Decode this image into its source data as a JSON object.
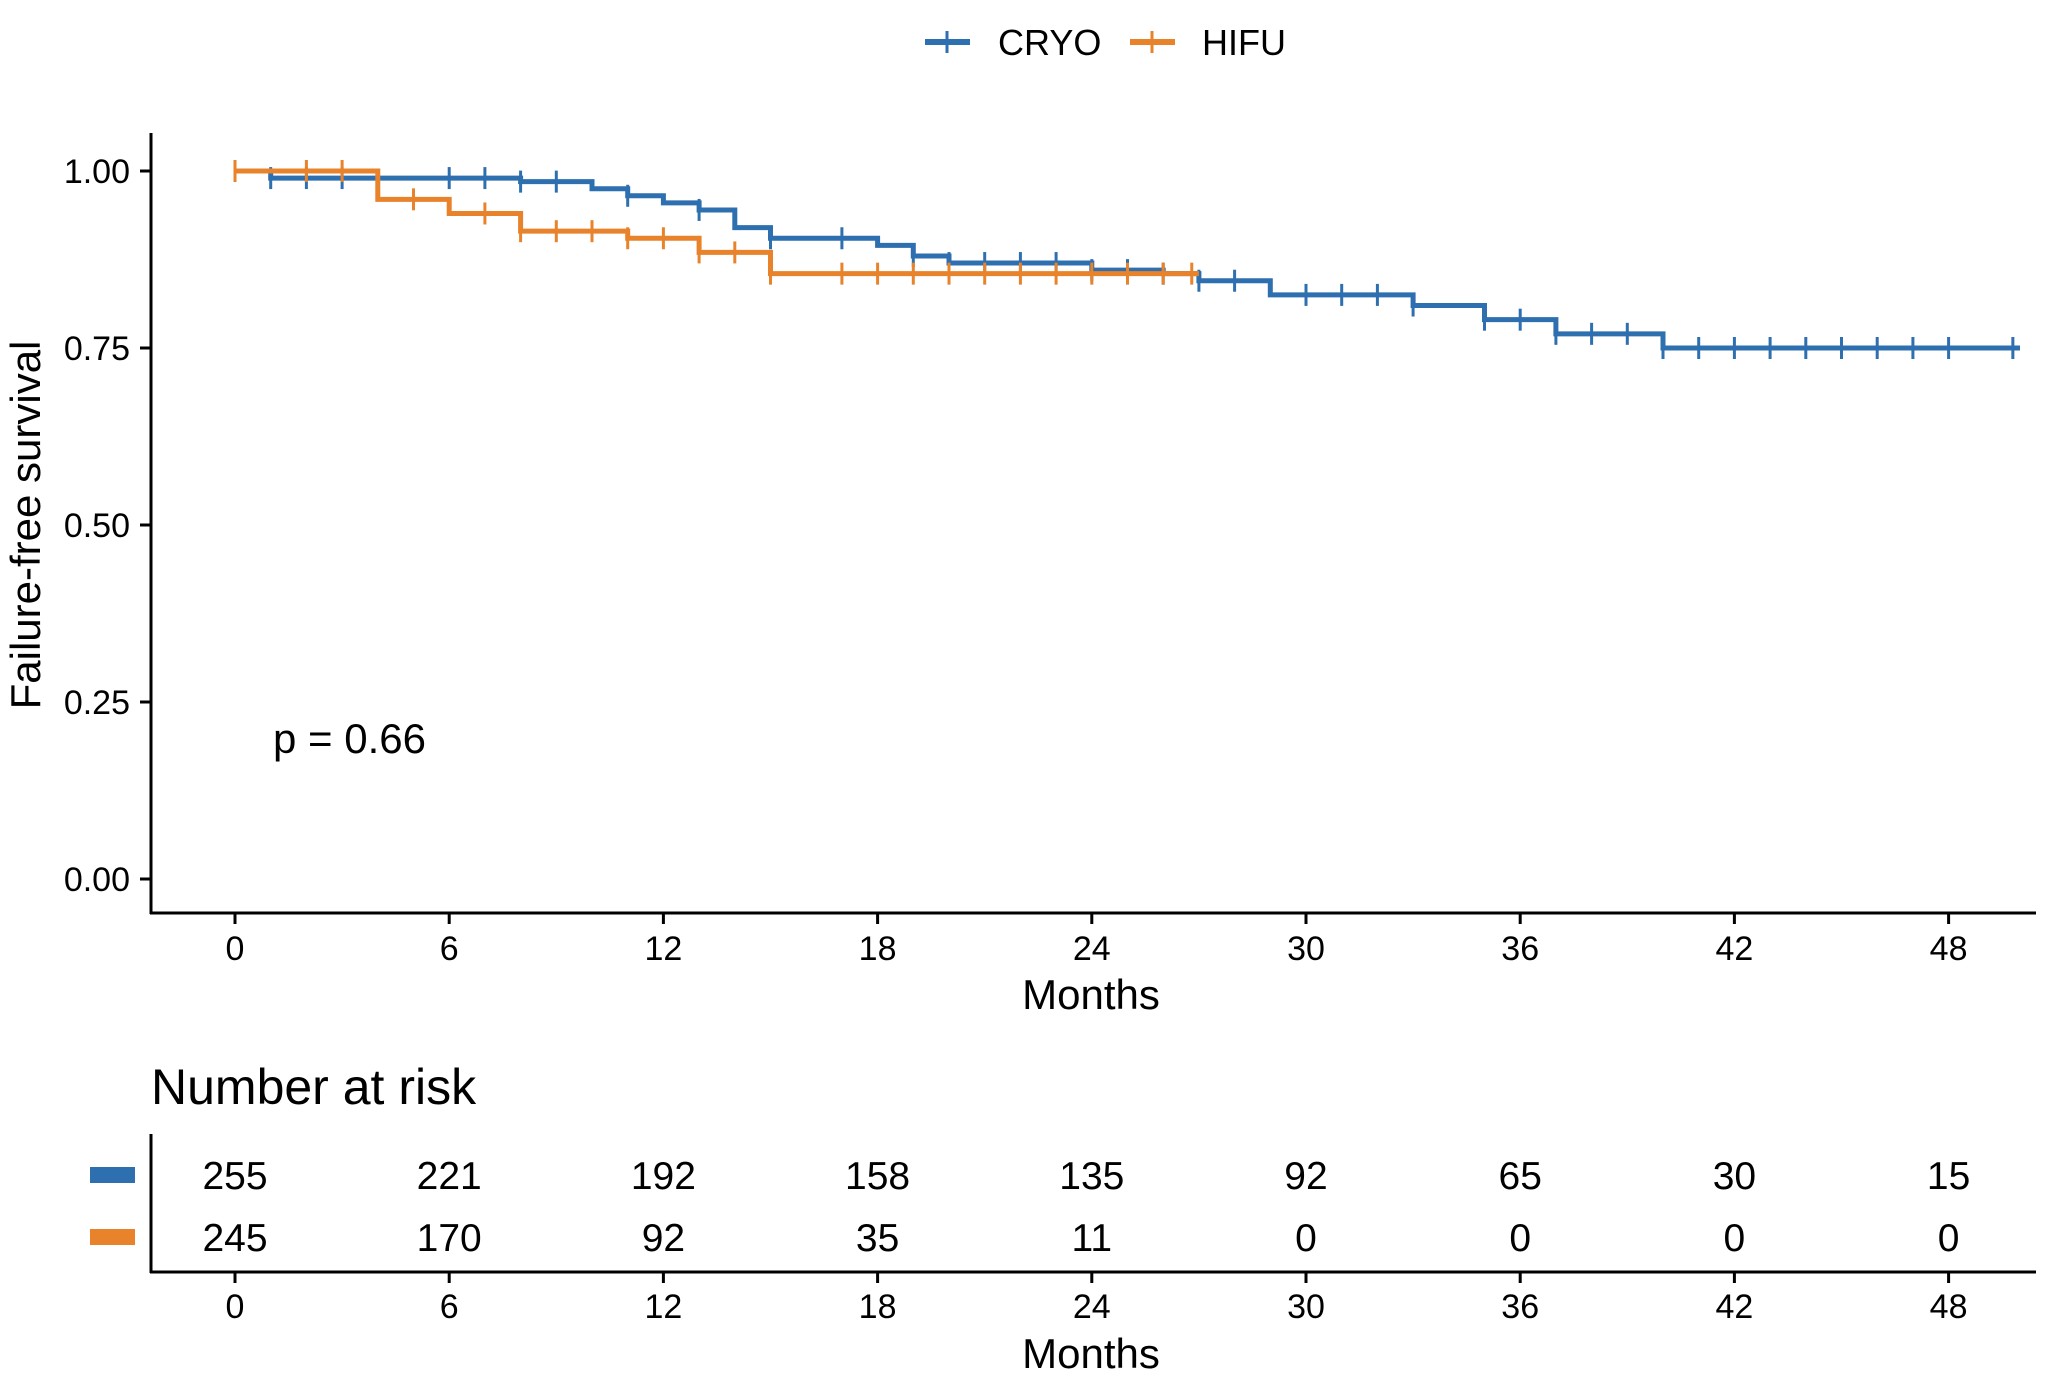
{
  "legend": {
    "entries": [
      {
        "name": "CRYO",
        "color": "#2E6FB0"
      },
      {
        "name": "HIFU",
        "color": "#E8832B"
      }
    ]
  },
  "annotation": {
    "pvalue": "p = 0.66"
  },
  "chart_data": {
    "type": "line",
    "subtype": "kaplan-meier step",
    "xlabel": "Months",
    "ylabel": "Failure-free survival",
    "xlim": [
      -2,
      50
    ],
    "ylim": [
      -0.05,
      1.05
    ],
    "xticks": [
      0,
      6,
      12,
      18,
      24,
      30,
      36,
      42,
      48
    ],
    "yticks": [
      0,
      0.25,
      0.5,
      0.75,
      1.0
    ],
    "ytick_labels": [
      "0.00",
      "0.25",
      "0.50",
      "0.75",
      "1.00"
    ],
    "grid": false,
    "legend_position": "top",
    "series": [
      {
        "name": "CRYO",
        "color": "#2E6FB0",
        "steps": [
          [
            0,
            1.0
          ],
          [
            1,
            0.99
          ],
          [
            8,
            0.985
          ],
          [
            10,
            0.975
          ],
          [
            11,
            0.965
          ],
          [
            12,
            0.955
          ],
          [
            13,
            0.945
          ],
          [
            14,
            0.92
          ],
          [
            15,
            0.905
          ],
          [
            18,
            0.895
          ],
          [
            19,
            0.88
          ],
          [
            20,
            0.87
          ],
          [
            24,
            0.86
          ],
          [
            26,
            0.855
          ],
          [
            27,
            0.845
          ],
          [
            29,
            0.825
          ],
          [
            33,
            0.81
          ],
          [
            35,
            0.79
          ],
          [
            37,
            0.77
          ],
          [
            40,
            0.75
          ],
          [
            50,
            0.75
          ]
        ],
        "censor_times": [
          1,
          2,
          3,
          6,
          7,
          8,
          9,
          11,
          13,
          15,
          17,
          19,
          20,
          21,
          22,
          23,
          24,
          25,
          26,
          27,
          28,
          30,
          31,
          32,
          33,
          35,
          36,
          37,
          38,
          39,
          40,
          41,
          42,
          43,
          44,
          45,
          46,
          47,
          48,
          49.8
        ]
      },
      {
        "name": "HIFU",
        "color": "#E8832B",
        "steps": [
          [
            0,
            1.0
          ],
          [
            4,
            0.96
          ],
          [
            6,
            0.94
          ],
          [
            8,
            0.915
          ],
          [
            11,
            0.905
          ],
          [
            13,
            0.885
          ],
          [
            15,
            0.855
          ],
          [
            27,
            0.855
          ]
        ],
        "censor_times": [
          0,
          2,
          3,
          5,
          7,
          8,
          9,
          10,
          11,
          12,
          13,
          14,
          15,
          17,
          18,
          19,
          20,
          21,
          22,
          23,
          24,
          25,
          26,
          26.8
        ]
      }
    ],
    "risk_table": {
      "title": "Number at risk",
      "xlabel": "Months",
      "times": [
        0,
        6,
        12,
        18,
        24,
        30,
        36,
        42,
        48
      ],
      "rows": [
        {
          "name": "CRYO",
          "color": "#2E6FB0",
          "counts": [
            "255",
            "221",
            "192",
            "158",
            "135",
            "92",
            "65",
            "30",
            "15"
          ]
        },
        {
          "name": "HIFU",
          "color": "#E8832B",
          "counts": [
            "245",
            "170",
            "92",
            "35",
            "11",
            "0",
            "0",
            "0",
            "0"
          ]
        }
      ]
    }
  }
}
